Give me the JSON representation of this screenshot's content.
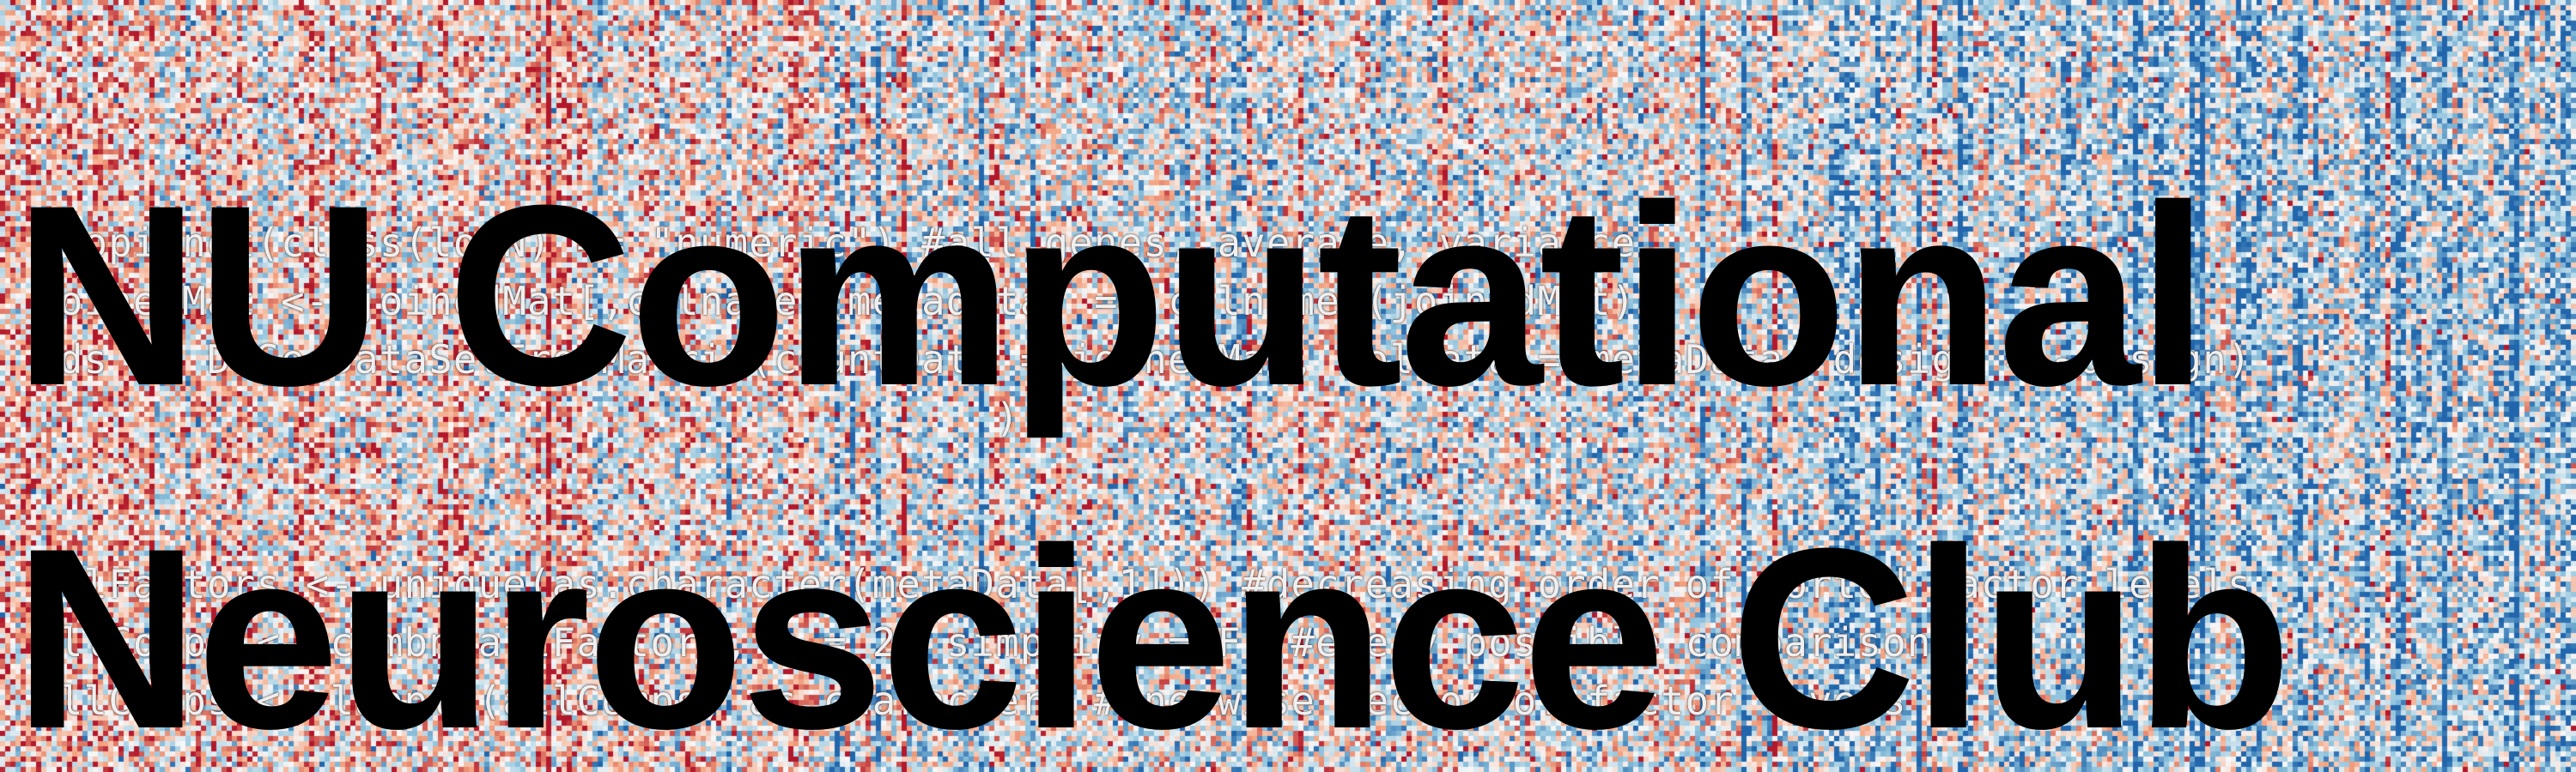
{
  "banner": {
    "title_lines": [
      "NU Computational",
      "Neuroscience Club"
    ]
  },
  "background": {
    "type": "heatmap",
    "palette": [
      "#2166ac",
      "#92c5de",
      "#f7f7f7",
      "#f4a582",
      "#b2182b"
    ],
    "code_lines": [
      "stopifnot(class(logN) == \"numeric\") #all genes, average, variance",
      "joinedMat <- joinedMat[,colnames(metadata) == colnames(joinedMat)]",
      "dds <- DESeqDataSetFromMatrix(countData = joinedMat, colData = metaData, design = ~design)",
      "                                       )",
      "allFactors <- unique(as.character(metaData[,1])) #decreasing order of sorted factor levels",
      "allComps <- combn(allFactors, m = 2, simplify = F) #every possible comparison",
      "allComps <- lapply(allComps, as.character) #one-wise vector of factor levels"
    ]
  }
}
